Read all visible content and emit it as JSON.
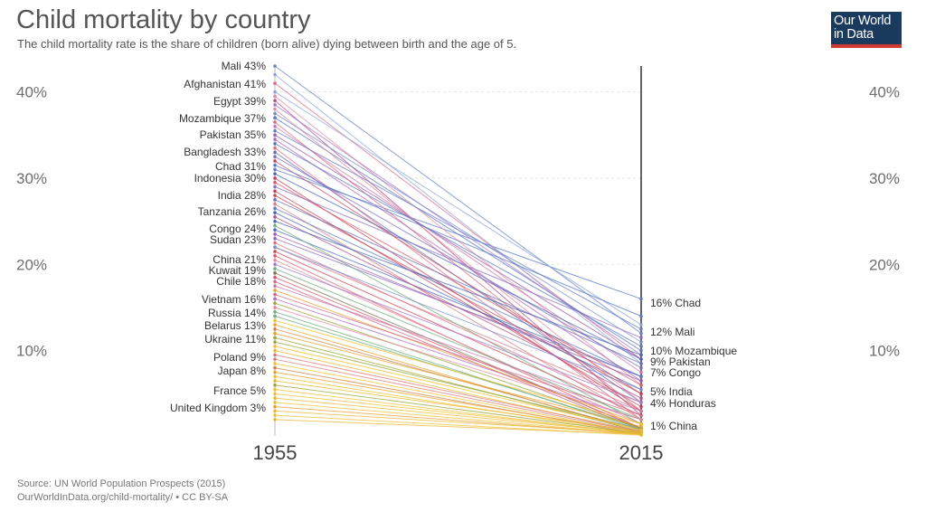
{
  "title": "Child mortality by country",
  "subtitle": "The child mortality rate is the share of children (born alive) dying between birth and the age of 5.",
  "logo": {
    "line1": "Our World",
    "line2": "in Data",
    "bg": "#1a3a5e",
    "accent": "#d13a30"
  },
  "source": {
    "line1": "Source: UN World Population Prospects (2015)",
    "line2": "OurWorldInData.org/child-mortality/ • CC BY-SA"
  },
  "chart_data": {
    "type": "line",
    "variant": "slope",
    "x": [
      1955,
      2015
    ],
    "x_labels": [
      "1955",
      "2015"
    ],
    "unit": "%",
    "ylim": [
      0,
      43
    ],
    "y_ticks": [
      10,
      20,
      30,
      40
    ],
    "y_tick_labels": [
      "10%",
      "20%",
      "30%",
      "40%"
    ],
    "grid": true,
    "legend": "none",
    "labeled_left": [
      {
        "country": "Mali",
        "value": 43,
        "label": "Mali 43%"
      },
      {
        "country": "Afghanistan",
        "value": 41,
        "label": "Afghanistan 41%"
      },
      {
        "country": "Egypt",
        "value": 39,
        "label": "Egypt 39%"
      },
      {
        "country": "Mozambique",
        "value": 37,
        "label": "Mozambique 37%"
      },
      {
        "country": "Pakistan",
        "value": 35,
        "label": "Pakistan 35%"
      },
      {
        "country": "Bangladesh",
        "value": 33,
        "label": "Bangladesh 33%"
      },
      {
        "country": "Chad",
        "value": 31,
        "label": "Chad 31%"
      },
      {
        "country": "Indonesia",
        "value": 30,
        "label": "Indonesia 30%"
      },
      {
        "country": "India",
        "value": 28,
        "label": "India 28%"
      },
      {
        "country": "Tanzania",
        "value": 26,
        "label": "Tanzania 26%"
      },
      {
        "country": "Congo",
        "value": 24,
        "label": "Congo 24%"
      },
      {
        "country": "Sudan",
        "value": 23,
        "label": "Sudan 23%"
      },
      {
        "country": "China",
        "value": 21,
        "label": "China 21%"
      },
      {
        "country": "Kuwait",
        "value": 19,
        "label": "Kuwait 19%"
      },
      {
        "country": "Chile",
        "value": 18,
        "label": "Chile 18%"
      },
      {
        "country": "Vietnam",
        "value": 16,
        "label": "Vietnam 16%"
      },
      {
        "country": "Russia",
        "value": 14,
        "label": "Russia 14%"
      },
      {
        "country": "Belarus",
        "value": 13,
        "label": "Belarus 13%"
      },
      {
        "country": "Ukraine",
        "value": 11,
        "label": "Ukraine 11%"
      },
      {
        "country": "Poland",
        "value": 9,
        "label": "Poland 9%"
      },
      {
        "country": "Japan",
        "value": 8,
        "label": "Japan 8%"
      },
      {
        "country": "France",
        "value": 5,
        "label": "France 5%"
      },
      {
        "country": "United Kingdom",
        "value": 3,
        "label": "United Kingdom 3%"
      }
    ],
    "labeled_right": [
      {
        "country": "Chad",
        "value": 16,
        "label": "16% Chad"
      },
      {
        "country": "Mali",
        "value": 12,
        "label": "12% Mali"
      },
      {
        "country": "Mozambique",
        "value": 10,
        "label": "10% Mozambique"
      },
      {
        "country": "Pakistan",
        "value": 9,
        "label": "9% Pakistan"
      },
      {
        "country": "Congo",
        "value": 7,
        "label": "7% Congo"
      },
      {
        "country": "India",
        "value": 5,
        "label": "5% India"
      },
      {
        "country": "Honduras",
        "value": 4,
        "label": "4% Honduras"
      },
      {
        "country": "China",
        "value": 1,
        "label": "1% China"
      }
    ],
    "series": [
      {
        "name": "Mali",
        "values": [
          43,
          12
        ],
        "color": "#6a80c8"
      },
      {
        "name": "Afghanistan",
        "values": [
          41,
          9
        ],
        "color": "#d8708a"
      },
      {
        "name": "Egypt",
        "values": [
          39,
          2.5
        ],
        "color": "#b5508a"
      },
      {
        "name": "Mozambique",
        "values": [
          37,
          10
        ],
        "color": "#5e79c2"
      },
      {
        "name": "Pakistan",
        "values": [
          35,
          9
        ],
        "color": "#9c5fa8"
      },
      {
        "name": "Bangladesh",
        "values": [
          33,
          4
        ],
        "color": "#6a6fb8"
      },
      {
        "name": "Chad",
        "values": [
          31,
          16
        ],
        "color": "#5a78c8"
      },
      {
        "name": "Indonesia",
        "values": [
          30,
          3
        ],
        "color": "#c7405a"
      },
      {
        "name": "India",
        "values": [
          28,
          5
        ],
        "color": "#c84a55"
      },
      {
        "name": "Tanzania",
        "values": [
          26,
          5.5
        ],
        "color": "#4f67b5"
      },
      {
        "name": "Congo",
        "values": [
          24,
          7
        ],
        "color": "#4a6ab8"
      },
      {
        "name": "Sudan",
        "values": [
          23,
          7
        ],
        "color": "#8a6fc0"
      },
      {
        "name": "Honduras",
        "values": [
          22,
          4
        ],
        "color": "#d87f86"
      },
      {
        "name": "China",
        "values": [
          21,
          1
        ],
        "color": "#d95a6a"
      },
      {
        "name": "Kuwait",
        "values": [
          19,
          0.9
        ],
        "color": "#7d7350"
      },
      {
        "name": "Chile",
        "values": [
          18,
          0.8
        ],
        "color": "#d06a88"
      },
      {
        "name": "Vietnam",
        "values": [
          16,
          2
        ],
        "color": "#b06ac0"
      },
      {
        "name": "Russia",
        "values": [
          14,
          1
        ],
        "color": "#6fae7a"
      },
      {
        "name": "Belarus",
        "values": [
          13,
          0.5
        ],
        "color": "#e8a030"
      },
      {
        "name": "Ukraine",
        "values": [
          11,
          0.9
        ],
        "color": "#9aa53a"
      },
      {
        "name": "Poland",
        "values": [
          9,
          0.5
        ],
        "color": "#d87a7a"
      },
      {
        "name": "Japan",
        "values": [
          8,
          0.3
        ],
        "color": "#c8844a"
      },
      {
        "name": "France",
        "values": [
          5,
          0.4
        ],
        "color": "#f0c030"
      },
      {
        "name": "United Kingdom",
        "values": [
          3,
          0.4
        ],
        "color": "#e8b830"
      },
      {
        "name": "",
        "values": [
          42,
          8.5
        ],
        "color": "#8fa4d8"
      },
      {
        "name": "",
        "values": [
          40,
          13
        ],
        "color": "#8fa4d8"
      },
      {
        "name": "",
        "values": [
          39.5,
          6
        ],
        "color": "#e48aa0"
      },
      {
        "name": "",
        "values": [
          38.5,
          9.5
        ],
        "color": "#a07ac8"
      },
      {
        "name": "",
        "values": [
          38,
          4
        ],
        "color": "#e48aa0"
      },
      {
        "name": "",
        "values": [
          37.5,
          11
        ],
        "color": "#7b8ed0"
      },
      {
        "name": "",
        "values": [
          36,
          7.5
        ],
        "color": "#c57ab0"
      },
      {
        "name": "",
        "values": [
          36.5,
          3
        ],
        "color": "#d76b7f"
      },
      {
        "name": "",
        "values": [
          35.5,
          12.5
        ],
        "color": "#6a80c8"
      },
      {
        "name": "",
        "values": [
          34.5,
          6.5
        ],
        "color": "#b06ac0"
      },
      {
        "name": "",
        "values": [
          34,
          10.5
        ],
        "color": "#5e79c2"
      },
      {
        "name": "",
        "values": [
          33.5,
          2
        ],
        "color": "#d8708a"
      },
      {
        "name": "",
        "values": [
          32.5,
          8
        ],
        "color": "#7d6fc0"
      },
      {
        "name": "",
        "values": [
          32,
          5
        ],
        "color": "#c84a55"
      },
      {
        "name": "",
        "values": [
          31.5,
          14
        ],
        "color": "#5a78c8"
      },
      {
        "name": "",
        "values": [
          30.5,
          9
        ],
        "color": "#4f67b5"
      },
      {
        "name": "",
        "values": [
          29.5,
          6
        ],
        "color": "#d95a6a"
      },
      {
        "name": "",
        "values": [
          29,
          11.5
        ],
        "color": "#8a6fc0"
      },
      {
        "name": "",
        "values": [
          28.5,
          3.5
        ],
        "color": "#c7405a"
      },
      {
        "name": "",
        "values": [
          27.5,
          8.5
        ],
        "color": "#6a6fb8"
      },
      {
        "name": "",
        "values": [
          27,
          2
        ],
        "color": "#d87f86"
      },
      {
        "name": "",
        "values": [
          26.5,
          7
        ],
        "color": "#5e79c2"
      },
      {
        "name": "",
        "values": [
          25.5,
          4.5
        ],
        "color": "#b5508a"
      },
      {
        "name": "",
        "values": [
          25,
          9.5
        ],
        "color": "#4a6ab8"
      },
      {
        "name": "",
        "values": [
          24.5,
          1.5
        ],
        "color": "#6fae7a"
      },
      {
        "name": "",
        "values": [
          23.5,
          6.5
        ],
        "color": "#9c5fa8"
      },
      {
        "name": "",
        "values": [
          22.5,
          3
        ],
        "color": "#d8708a"
      },
      {
        "name": "",
        "values": [
          22,
          5.5
        ],
        "color": "#7b8ed0"
      },
      {
        "name": "",
        "values": [
          21.5,
          2.5
        ],
        "color": "#c84a55"
      },
      {
        "name": "",
        "values": [
          20.5,
          1.5
        ],
        "color": "#e48aa0"
      },
      {
        "name": "",
        "values": [
          20,
          4
        ],
        "color": "#a07ac8"
      },
      {
        "name": "",
        "values": [
          19.5,
          2
        ],
        "color": "#6fae7a"
      },
      {
        "name": "",
        "values": [
          18.5,
          1
        ],
        "color": "#d95a6a"
      },
      {
        "name": "",
        "values": [
          17.5,
          3
        ],
        "color": "#c57ab0"
      },
      {
        "name": "",
        "values": [
          17,
          1.5
        ],
        "color": "#e8a030"
      },
      {
        "name": "",
        "values": [
          16.5,
          2.5
        ],
        "color": "#d06a88"
      },
      {
        "name": "",
        "values": [
          15.5,
          1
        ],
        "color": "#9aa53a"
      },
      {
        "name": "",
        "values": [
          15,
          2
        ],
        "color": "#e48aa0"
      },
      {
        "name": "",
        "values": [
          14.5,
          0.8
        ],
        "color": "#6fae7a"
      },
      {
        "name": "",
        "values": [
          13.5,
          1.5
        ],
        "color": "#f0c030"
      },
      {
        "name": "",
        "values": [
          12.5,
          0.7
        ],
        "color": "#c8844a"
      },
      {
        "name": "",
        "values": [
          12,
          1.2
        ],
        "color": "#e8a030"
      },
      {
        "name": "",
        "values": [
          11.5,
          0.6
        ],
        "color": "#9aa53a"
      },
      {
        "name": "",
        "values": [
          10.5,
          0.8
        ],
        "color": "#f0c030"
      },
      {
        "name": "",
        "values": [
          10,
          0.5
        ],
        "color": "#e8b830"
      },
      {
        "name": "",
        "values": [
          9.5,
          0.6
        ],
        "color": "#d87a7a"
      },
      {
        "name": "",
        "values": [
          8.5,
          0.4
        ],
        "color": "#f0c030"
      },
      {
        "name": "",
        "values": [
          7.5,
          0.5
        ],
        "color": "#e8a030"
      },
      {
        "name": "",
        "values": [
          7,
          0.3
        ],
        "color": "#f0c030"
      },
      {
        "name": "",
        "values": [
          6.5,
          0.6
        ],
        "color": "#e8b830"
      },
      {
        "name": "",
        "values": [
          6,
          0.4
        ],
        "color": "#9aa53a"
      },
      {
        "name": "",
        "values": [
          5.5,
          0.3
        ],
        "color": "#f0c030"
      },
      {
        "name": "",
        "values": [
          4.5,
          0.4
        ],
        "color": "#e8b830"
      },
      {
        "name": "",
        "values": [
          4,
          0.3
        ],
        "color": "#f0c030"
      },
      {
        "name": "",
        "values": [
          3.5,
          0.3
        ],
        "color": "#e8a030"
      },
      {
        "name": "",
        "values": [
          2.5,
          0.2
        ],
        "color": "#f0c030"
      },
      {
        "name": "",
        "values": [
          2,
          0.3
        ],
        "color": "#e8b830"
      }
    ]
  }
}
